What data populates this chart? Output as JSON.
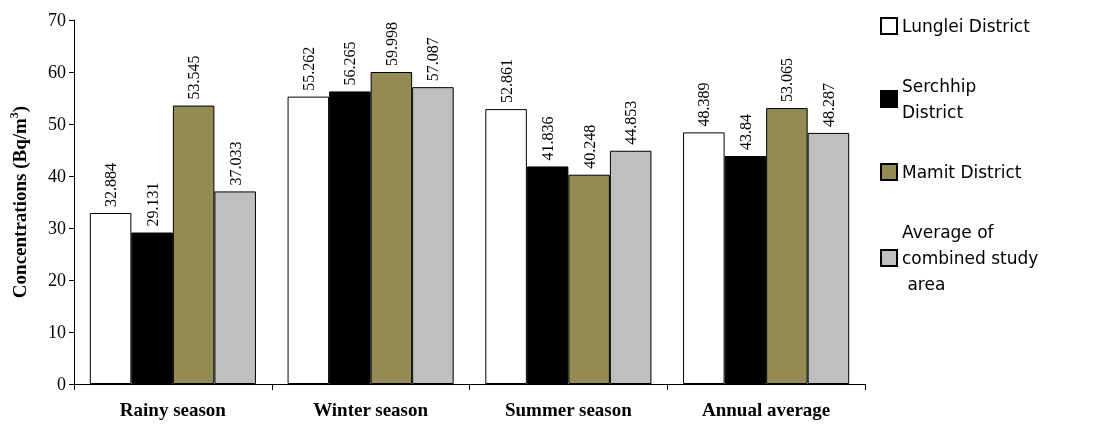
{
  "chart_data": {
    "type": "bar",
    "ylabel": "Concentrations (Bq/m$^{3}$)",
    "categories": [
      "Rainy season",
      "Winter season",
      "Summer season",
      "Annual average"
    ],
    "series": [
      {
        "name": "Lunglei District",
        "color": "#ffffff",
        "values": [
          32.884,
          55.262,
          52.861,
          48.389
        ]
      },
      {
        "name": "Serchhip District",
        "color": "#000000",
        "values": [
          29.131,
          56.265,
          41.836,
          43.84
        ]
      },
      {
        "name": "Mamit District",
        "color": "#948a54",
        "values": [
          53.545,
          59.998,
          40.248,
          53.065
        ]
      },
      {
        "name": "Average of combined study area",
        "color": "#bfbfbf",
        "values": [
          37.033,
          57.087,
          44.853,
          48.287
        ]
      }
    ],
    "ylim": [
      0,
      70
    ],
    "yticks": [
      0,
      10,
      20,
      30,
      40,
      50,
      60,
      70
    ],
    "grid": false,
    "legend": "right",
    "data_labels": true
  }
}
